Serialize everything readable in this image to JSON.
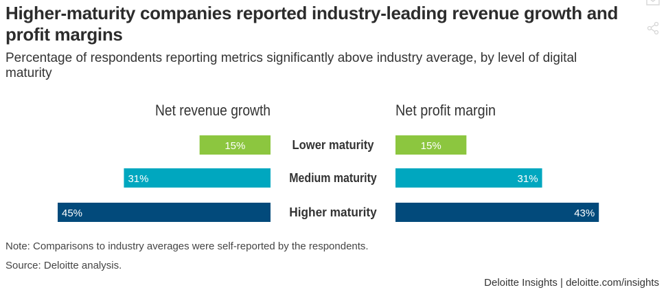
{
  "title": "Higher-maturity companies reported industry-leading revenue growth and profit margins",
  "subtitle": "Percentage of respondents reporting metrics significantly above industry average, by level of digital maturity",
  "note": "Note: Comparisons to industry averages were self-reported by the respondents.",
  "source": "Source: Deloitte analysis.",
  "footer": "Deloitte Insights | deloitte.com/insights",
  "icons": [
    "email-icon",
    "share-icon"
  ],
  "chart_data": {
    "type": "bar",
    "orientation": "horizontal-butterfly",
    "categories": [
      "Lower maturity",
      "Medium maturity",
      "Higher maturity"
    ],
    "series": [
      {
        "name": "Net revenue growth",
        "values": [
          15,
          31,
          45
        ],
        "labels": [
          "15%",
          "31%",
          "45%"
        ],
        "direction": "left"
      },
      {
        "name": "Net profit margin",
        "values": [
          15,
          31,
          43
        ],
        "labels": [
          "15%",
          "31%",
          "43%"
        ],
        "direction": "right"
      }
    ],
    "colors": [
      "#8cc63f",
      "#00a7bf",
      "#024a7b"
    ],
    "value_unit": "%",
    "xlim": [
      0,
      45
    ]
  }
}
